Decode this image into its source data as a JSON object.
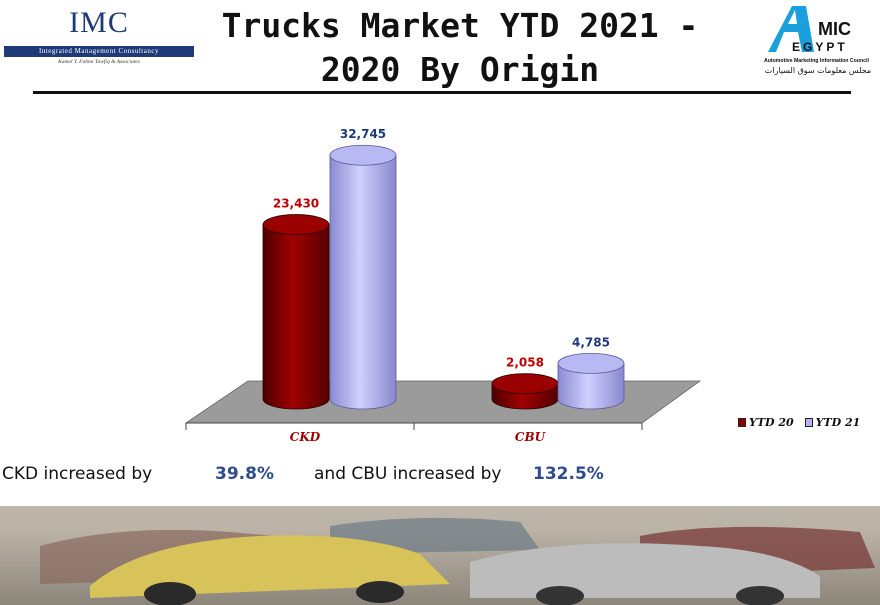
{
  "header": {
    "title_line1": "Trucks Market YTD 2021 -",
    "title_line2": "2020 By Origin",
    "imc_logo": {
      "name": "IMC",
      "subtitle": "Integrated Management Consultancy",
      "tagline": "Kamel Y. Fahmi Tawfiq & Associates"
    },
    "amic_logo": {
      "name_a": "A",
      "name_mic": "MIC",
      "name_egypt": "EGYPT",
      "english": "Automotive Marketing Information Council",
      "arabic": "مجلس معلومات سوق السيارات"
    }
  },
  "chart_data": {
    "type": "bar",
    "categories": [
      "CKD",
      "CBU"
    ],
    "series": [
      {
        "name": "YTD 20",
        "values": [
          23430,
          2058
        ],
        "labels": [
          "23,430",
          "2,058"
        ],
        "color": "#8b0000"
      },
      {
        "name": "YTD 21",
        "values": [
          32745,
          4785
        ],
        "labels": [
          "32,745",
          "4,785"
        ],
        "color": "#b3b3f0"
      }
    ],
    "ylim": [
      0,
      36000
    ],
    "legend_position": "right",
    "style": "3d-cylinder",
    "floor_color": "#9b9b9b",
    "category_label_color": "#a00000",
    "label_colors": [
      "#c00000",
      "#1f3a78"
    ]
  },
  "caption": {
    "ckd_text": "CKD increased by",
    "ckd_pct": "39.8%",
    "cbu_text": "and CBU increased by",
    "cbu_pct": "132.5%"
  },
  "photo_band": {
    "icon": "vintage-cars-photo"
  }
}
